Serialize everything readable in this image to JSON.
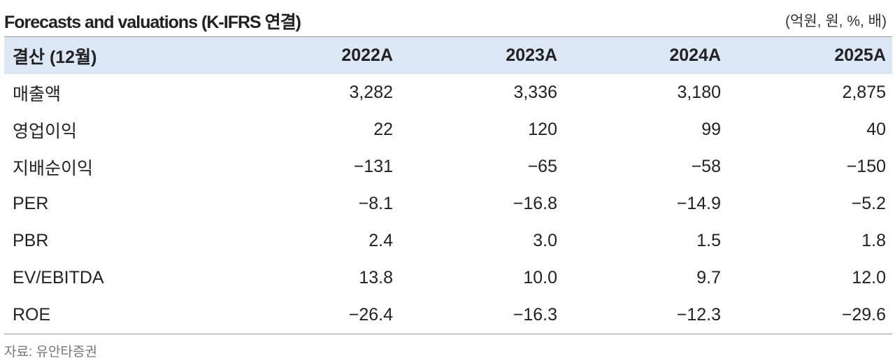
{
  "header": {
    "title": "Forecasts and valuations (K-IFRS 연결)",
    "unit": "(억원, 원, %, 배)"
  },
  "table": {
    "columns": [
      "결산 (12월)",
      "2022A",
      "2023A",
      "2024A",
      "2025A"
    ],
    "rows": [
      [
        "매출액",
        "3,282",
        "3,336",
        "3,180",
        "2,875"
      ],
      [
        "영업이익",
        "22",
        "120",
        "99",
        "40"
      ],
      [
        "지배순이익",
        "−131",
        "−65",
        "−58",
        "−150"
      ],
      [
        "PER",
        "−8.1",
        "−16.8",
        "−14.9",
        "−5.2"
      ],
      [
        "PBR",
        "2.4",
        "3.0",
        "1.5",
        "1.8"
      ],
      [
        "EV/EBITDA",
        "13.8",
        "10.0",
        "9.7",
        "12.0"
      ],
      [
        "ROE",
        "−26.4",
        "−16.3",
        "−12.3",
        "−29.6"
      ]
    ]
  },
  "footer": {
    "source": "자료: 유안타증권"
  }
}
